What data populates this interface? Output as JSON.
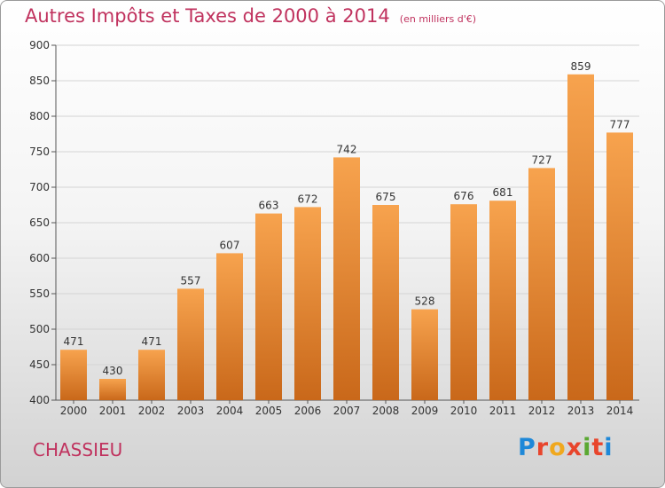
{
  "chart_data": {
    "type": "bar",
    "title": "Autres Impôts et Taxes de 2000 à 2014",
    "subtitle": "(en milliers d'€)",
    "categories": [
      "2000",
      "2001",
      "2002",
      "2003",
      "2004",
      "2005",
      "2006",
      "2007",
      "2008",
      "2009",
      "2010",
      "2011",
      "2012",
      "2013",
      "2014"
    ],
    "values": [
      471,
      430,
      471,
      557,
      607,
      663,
      672,
      742,
      675,
      528,
      676,
      681,
      727,
      859,
      777
    ],
    "ylim": [
      400,
      900
    ],
    "yticks": [
      400,
      450,
      500,
      550,
      600,
      650,
      700,
      750,
      800,
      850,
      900
    ],
    "grid": true,
    "bar_color": "#f0922e"
  },
  "footer": {
    "city": "CHASSIEU",
    "logo": "Proxiti"
  }
}
